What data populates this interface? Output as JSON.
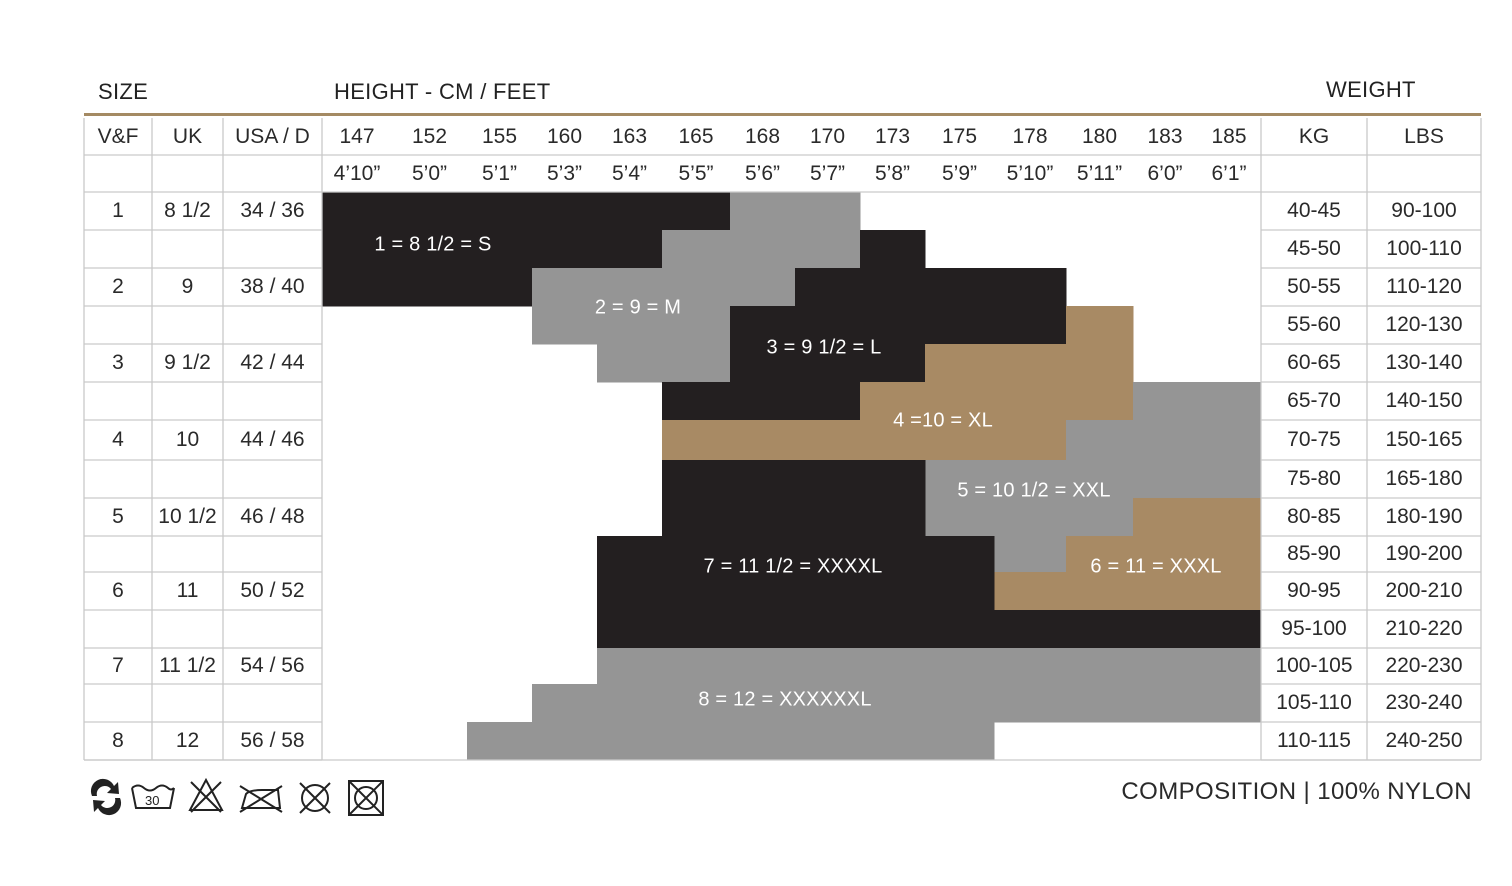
{
  "headers": {
    "size": "SIZE",
    "height": "HEIGHT - CM / FEET",
    "weight": "WEIGHT"
  },
  "columns": {
    "vf": "V&F",
    "uk": "UK",
    "usa": "USA / D",
    "kg": "KG",
    "lbs": "LBS"
  },
  "heights_cm": [
    "147",
    "152",
    "155",
    "160",
    "163",
    "165",
    "168",
    "170",
    "173",
    "175",
    "178",
    "180",
    "183",
    "185"
  ],
  "heights_ft": [
    "4’10”",
    "5’0”",
    "5’1”",
    "5’3”",
    "5’4”",
    "5’5”",
    "5’6”",
    "5’7”",
    "5’8”",
    "5’9”",
    "5’10”",
    "5’11”",
    "6’0”",
    "6’1”"
  ],
  "size_rows": [
    {
      "vf": "1",
      "uk": "8 1/2",
      "usa": "34 / 36"
    },
    {
      "vf": "",
      "uk": "",
      "usa": ""
    },
    {
      "vf": "2",
      "uk": "9",
      "usa": "38 / 40"
    },
    {
      "vf": "",
      "uk": "",
      "usa": ""
    },
    {
      "vf": "3",
      "uk": "9 1/2",
      "usa": "42 / 44"
    },
    {
      "vf": "",
      "uk": "",
      "usa": ""
    },
    {
      "vf": "4",
      "uk": "10",
      "usa": "44 / 46"
    },
    {
      "vf": "",
      "uk": "",
      "usa": ""
    },
    {
      "vf": "5",
      "uk": "10 1/2",
      "usa": "46 / 48"
    },
    {
      "vf": "",
      "uk": "",
      "usa": ""
    },
    {
      "vf": "6",
      "uk": "11",
      "usa": "50 / 52"
    },
    {
      "vf": "",
      "uk": "",
      "usa": ""
    },
    {
      "vf": "7",
      "uk": "11 1/2",
      "usa": "54 / 56"
    },
    {
      "vf": "",
      "uk": "",
      "usa": ""
    },
    {
      "vf": "8",
      "uk": "12",
      "usa": "56 / 58"
    }
  ],
  "weights_kg": [
    "40-45",
    "45-50",
    "50-55",
    "55-60",
    "60-65",
    "65-70",
    "70-75",
    "75-80",
    "80-85",
    "85-90",
    "90-95",
    "95-100",
    "100-105",
    "105-110",
    "110-115"
  ],
  "weights_lbs": [
    "90-100",
    "100-110",
    "110-120",
    "120-130",
    "130-140",
    "140-150",
    "150-165",
    "165-180",
    "180-190",
    "190-200",
    "200-210",
    "210-220",
    "220-230",
    "230-240",
    "240-250"
  ],
  "zones": [
    {
      "label": "1 = 8 1/2 = S",
      "color": "#231f20"
    },
    {
      "label": "2 = 9 = M",
      "color": "#959595"
    },
    {
      "label": "3 = 9 1/2 = L",
      "color": "#231f20"
    },
    {
      "label": "4 =10 = XL",
      "color": "#a88a64"
    },
    {
      "label": "5 = 10 1/2 = XXL",
      "color": "#959595"
    },
    {
      "label": "6 = 11 = XXXL",
      "color": "#a88a64"
    },
    {
      "label": "7 = 11 1/2 = XXXXL",
      "color": "#231f20"
    },
    {
      "label": "8 = 12 = XXXXXXL",
      "color": "#959595"
    }
  ],
  "care_icons": [
    "recycle-icon",
    "wash-30-icon",
    "no-bleach-icon",
    "no-iron-icon",
    "no-dry-clean-icon",
    "no-tumble-dry-icon"
  ],
  "composition": "COMPOSITION | 100% NYLON",
  "colors": {
    "black": "#231f20",
    "grey": "#959595",
    "gold": "#a88a64",
    "rule": "#a48a63",
    "grid": "#c9c9c9"
  }
}
